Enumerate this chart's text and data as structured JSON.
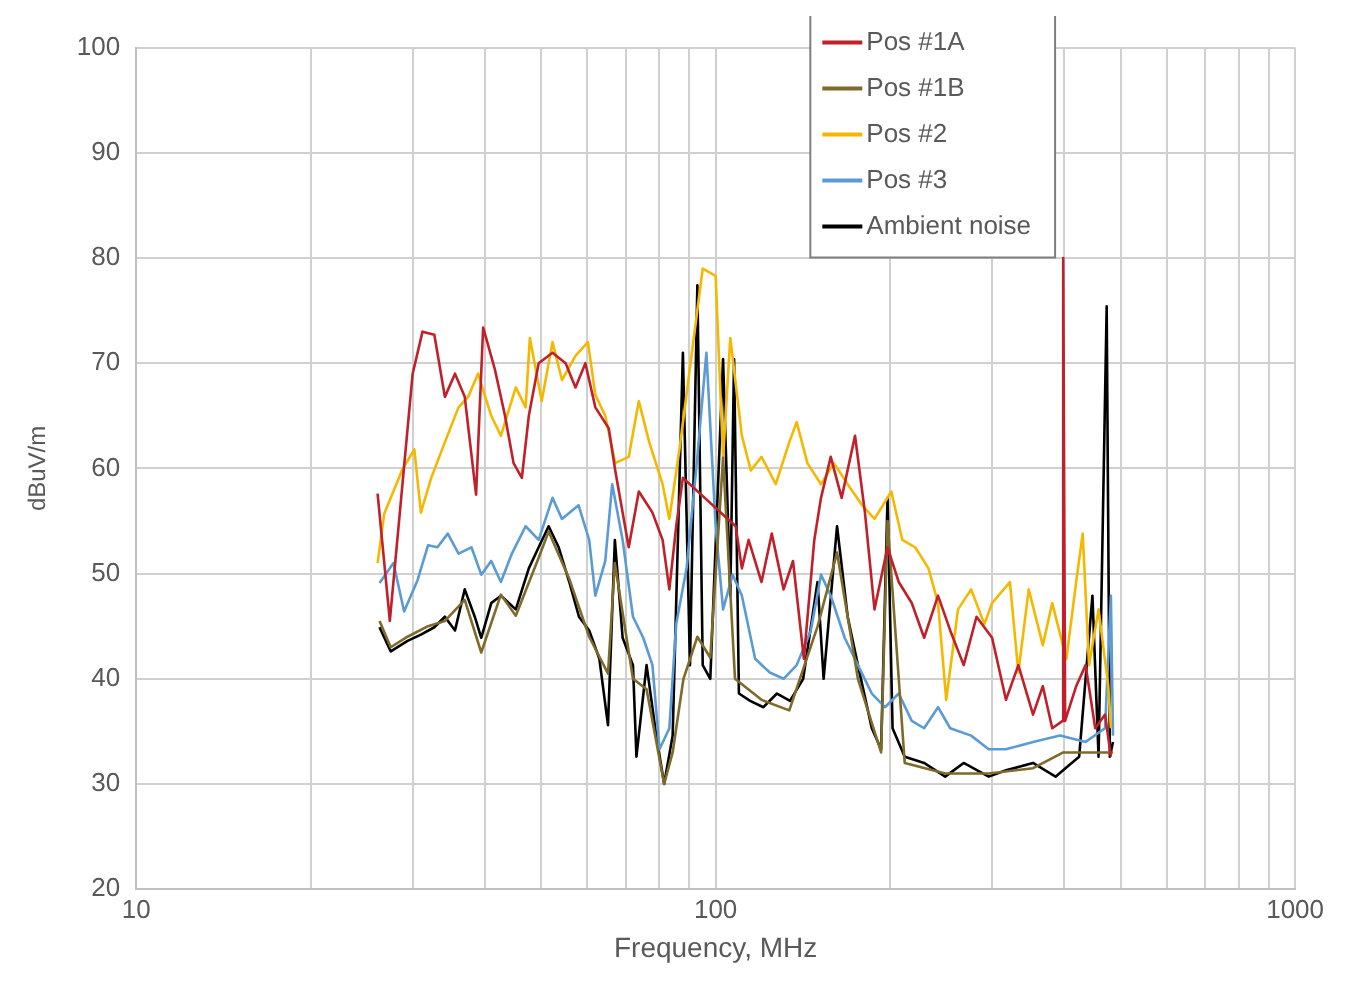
{
  "chart_data": {
    "type": "line",
    "xlabel": "Frequency, MHz",
    "ylabel": "dBuV/m",
    "log": "x",
    "xlim": [
      10,
      1000
    ],
    "ylim": [
      20,
      100
    ],
    "xticks": [
      10,
      {
        "value": 20,
        "label": null
      },
      {
        "value": 30,
        "label": null
      },
      {
        "value": 40,
        "label": null
      },
      {
        "value": 50,
        "label": null
      },
      {
        "value": 60,
        "label": null
      },
      {
        "value": 70,
        "label": null
      },
      {
        "value": 80,
        "label": null
      },
      {
        "value": 90,
        "label": null
      },
      100,
      {
        "value": 200,
        "label": null
      },
      {
        "value": 300,
        "label": null
      },
      {
        "value": 400,
        "label": null
      },
      {
        "value": 500,
        "label": null
      },
      {
        "value": 600,
        "label": null
      },
      {
        "value": 700,
        "label": null
      },
      {
        "value": 800,
        "label": null
      },
      {
        "value": 900,
        "label": null
      },
      1000
    ],
    "yticks": [
      20,
      30,
      40,
      50,
      60,
      70,
      80,
      90,
      100
    ],
    "grid": true,
    "legend": "top right",
    "marker": "none",
    "line_style": "solid",
    "series": [
      {
        "name": "Pos #1A",
        "color": "#c0202a",
        "x": [
          26.1,
          27.4,
          30,
          31.2,
          32.7,
          34.1,
          35.5,
          36.9,
          38.6,
          39.7,
          41.6,
          43.3,
          44.8,
          46.3,
          47.6,
          49.5,
          52.3,
          55.1,
          57.3,
          59.6,
          62,
          65.4,
          67.1,
          70.8,
          73.7,
          77.8,
          81,
          83.2,
          85.5,
          87.8,
          108.3,
          111,
          114,
          120,
          125,
          131,
          136,
          142,
          148,
          152,
          158,
          165,
          174,
          181,
          188,
          198,
          207,
          218,
          229,
          242,
          254,
          268,
          282,
          300,
          317,
          333,
          353,
          367,
          381,
          397,
          398,
          401,
          419,
          435,
          452,
          470,
          481
        ],
        "values": [
          57.6,
          45.5,
          69,
          73,
          72.7,
          66.8,
          69,
          66.8,
          57.5,
          73.4,
          69.4,
          65,
          60.5,
          59.1,
          65,
          70,
          71,
          70,
          67.7,
          70,
          65.8,
          63.8,
          59.8,
          52.5,
          57.8,
          55.8,
          53.2,
          48.5,
          54.5,
          59.1,
          54.5,
          50.5,
          53.2,
          49.2,
          53.8,
          48.5,
          51.2,
          41.9,
          53.2,
          57.2,
          61.1,
          57.2,
          63.1,
          55.8,
          46.6,
          52.5,
          49.2,
          47.2,
          43.9,
          47.9,
          44.6,
          41.3,
          45.9,
          43.9,
          38,
          41.3,
          36.6,
          39.3,
          35.3,
          36,
          80,
          36,
          39.3,
          41.3,
          35.3,
          36.6,
          32.6
        ]
      },
      {
        "name": "Pos #1B",
        "color": "#7f6a2a",
        "x": [
          26.3,
          27.5,
          29.4,
          31.9,
          34.1,
          36.9,
          39.4,
          42.6,
          45.2,
          49.5,
          51.5,
          55.9,
          60.5,
          65.2,
          67,
          72,
          76,
          81.5,
          84.3,
          88,
          93,
          97.9,
          103,
          108,
          120,
          134,
          150,
          162,
          176,
          193,
          198,
          212,
          249,
          296,
          353,
          398,
          435,
          473,
          485
        ],
        "values": [
          45.5,
          43,
          44,
          45,
          45.5,
          47.5,
          42.5,
          48,
          46,
          51.5,
          54,
          49.5,
          44,
          40.5,
          51,
          40,
          39,
          30,
          33,
          40,
          44,
          42,
          61,
          40,
          38,
          37,
          45,
          52,
          40,
          33,
          55,
          32,
          31,
          31,
          31.5,
          33,
          33,
          33,
          33
        ]
      },
      {
        "name": "Pos #2",
        "color": "#f5b800",
        "x": [
          26.1,
          26.8,
          28.8,
          30.2,
          31,
          32.3,
          34.1,
          36,
          37.4,
          38.9,
          41,
          42.6,
          45.2,
          47,
          47.8,
          50.1,
          52.3,
          54.3,
          57.3,
          60.2,
          62,
          64.5,
          67.1,
          70.8,
          73.7,
          76.8,
          81,
          83.2,
          86.6,
          95,
          100,
          103,
          106,
          111,
          115,
          120,
          127,
          134,
          138,
          144,
          152,
          160,
          169,
          179,
          188,
          201,
          210,
          221,
          233,
          242,
          250,
          262,
          276,
          291,
          300,
          322,
          333,
          347,
          367,
          381,
          403,
          419,
          430,
          441,
          458,
          476,
          481
        ],
        "values": [
          51,
          55.7,
          59.9,
          61.8,
          55.8,
          59.1,
          62.5,
          65.8,
          66.8,
          69,
          65,
          63.1,
          67.7,
          65.8,
          72.4,
          66.4,
          72,
          68.4,
          70.7,
          72,
          67,
          65,
          60.5,
          61.1,
          66.4,
          62.5,
          58.5,
          55.2,
          61.8,
          79,
          78.3,
          61,
          72.4,
          63.1,
          59.8,
          61.1,
          58.5,
          62.5,
          64.4,
          60.5,
          58.5,
          60.5,
          58.5,
          56.5,
          55.2,
          57.8,
          53.2,
          52.5,
          50.5,
          47.2,
          38,
          46.6,
          48.5,
          45.2,
          47.2,
          49.2,
          40.6,
          48.5,
          43.2,
          47.2,
          41.9,
          49.2,
          53.8,
          41.3,
          46.6,
          39.3,
          35.3
        ]
      },
      {
        "name": "Pos #3",
        "color": "#5b9bd5",
        "x": [
          26.3,
          27.8,
          29,
          30.6,
          31.9,
          33.1,
          34.5,
          36,
          37.9,
          39.4,
          41,
          42.6,
          44.5,
          47,
          49.5,
          52.3,
          54.3,
          58,
          60.5,
          62,
          64.5,
          66.3,
          69.1,
          72,
          75,
          77.8,
          80,
          83.2,
          85.5,
          89.1,
          93,
          96.4,
          100,
          103,
          107,
          111,
          117,
          124,
          131,
          138,
          146,
          152,
          158,
          167,
          176,
          186,
          196,
          207,
          218,
          229,
          242,
          254,
          276,
          296,
          317,
          353,
          393,
          435,
          470,
          481,
          485
        ],
        "values": [
          49.1,
          51,
          46.4,
          49.4,
          52.7,
          52.5,
          53.8,
          51.9,
          52.5,
          49.9,
          51.2,
          49.2,
          51.9,
          54.5,
          53.2,
          57.2,
          55.2,
          56.5,
          53.2,
          47.9,
          51.2,
          58.5,
          53.2,
          45.9,
          43.9,
          41.3,
          33.3,
          35.3,
          45.2,
          50.5,
          61.1,
          71,
          54.5,
          46.6,
          49.9,
          47.9,
          41.9,
          40.6,
          40,
          41.3,
          44.6,
          49.9,
          47.9,
          43.9,
          41.3,
          38.6,
          37.3,
          38.6,
          36,
          35.3,
          37.3,
          35.3,
          34.6,
          33.3,
          33.3,
          34,
          34.6,
          34,
          35.3,
          47.9,
          34.6
        ]
      },
      {
        "name": "Ambient noise",
        "color": "#000000",
        "x": [
          26.3,
          27.5,
          29.4,
          31,
          32.7,
          34.1,
          35.5,
          36.9,
          38.4,
          39.4,
          41,
          42.6,
          45.2,
          47.6,
          49.5,
          51.5,
          53.6,
          55.9,
          58.1,
          60.5,
          63,
          65.2,
          67,
          69.1,
          72,
          73,
          76,
          79,
          81.5,
          84.3,
          87.8,
          90.3,
          93,
          95,
          97.9,
          103,
          106,
          107.6,
          109.7,
          114.7,
          120.9,
          127.6,
          134.4,
          141.6,
          149.9,
          153.6,
          162,
          169,
          176,
          186,
          193,
          198,
          202,
          212,
          229,
          249,
          268,
          296,
          317,
          353,
          386,
          424,
          447,
          458,
          473,
          479,
          485
        ],
        "values": [
          44.9,
          42.6,
          43.6,
          44.2,
          44.9,
          45.9,
          44.6,
          48.5,
          45.9,
          43.9,
          47.2,
          47.9,
          46.6,
          50.5,
          52.5,
          54.5,
          52.5,
          49.2,
          45.9,
          44.6,
          41.9,
          35.6,
          53.2,
          43.9,
          41.3,
          32.6,
          41.3,
          34.6,
          30,
          34.6,
          71,
          41.3,
          77.4,
          41.3,
          40,
          70.4,
          47.9,
          70.4,
          38.6,
          37.9,
          37.3,
          38.6,
          37.9,
          40,
          49.2,
          40,
          54.5,
          45.9,
          41.3,
          35.3,
          33.3,
          57.2,
          35.3,
          32.6,
          32,
          30.7,
          32,
          30.7,
          31.3,
          32,
          30.7,
          32.6,
          47.9,
          32.6,
          75.4,
          32.6,
          34
        ]
      }
    ]
  }
}
